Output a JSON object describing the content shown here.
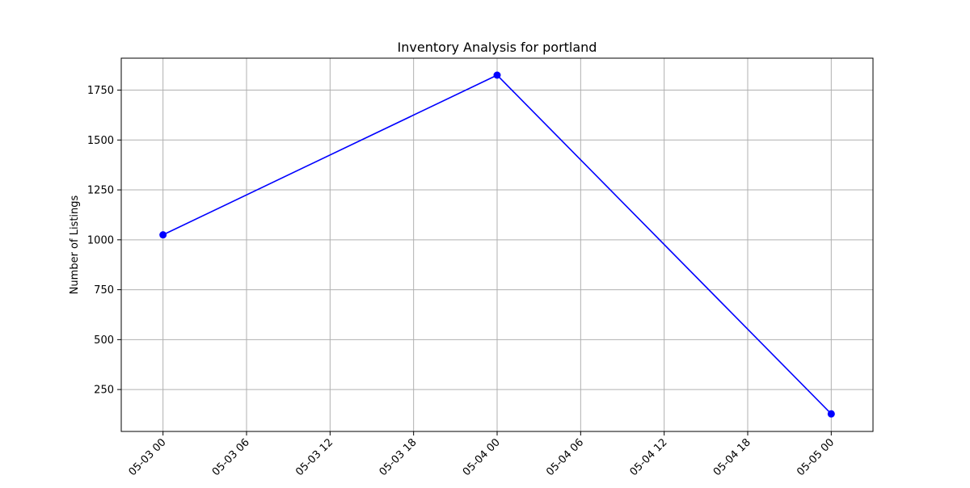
{
  "chart_data": {
    "type": "line",
    "title": "Inventory Analysis for portland",
    "xlabel": "",
    "ylabel": "Number of Listings",
    "x_ticks": [
      "05-03 00",
      "05-03 06",
      "05-03 12",
      "05-03 18",
      "05-04 00",
      "05-04 06",
      "05-04 12",
      "05-04 18",
      "05-05 00"
    ],
    "y_ticks": [
      250,
      500,
      750,
      1000,
      1250,
      1500,
      1750
    ],
    "x_range": [
      "05-02 21",
      "05-05 03"
    ],
    "ylim": [
      40,
      1910
    ],
    "grid": true,
    "series": [
      {
        "name": "",
        "color": "#0000ff",
        "marker": "circle",
        "points": [
          {
            "x": "05-03 00",
            "y": 1025
          },
          {
            "x": "05-04 00",
            "y": 1825
          },
          {
            "x": "05-05 00",
            "y": 128
          }
        ]
      }
    ]
  }
}
